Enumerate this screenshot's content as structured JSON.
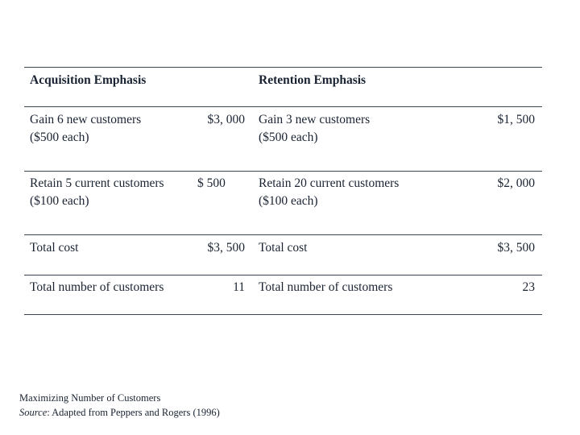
{
  "table": {
    "headers": {
      "left": "Acquisition Emphasis",
      "right": "Retention Emphasis"
    },
    "rows": [
      {
        "left_line1": "Gain 6 new customers",
        "left_line2": "($500 each)",
        "left_value": "$3, 000",
        "right_line1": "Gain 3 new customers",
        "right_line2": "($500 each)",
        "right_value": "$1, 500"
      },
      {
        "left_line1": "Retain 5 current customers",
        "left_line2": "($100 each)",
        "left_value": "$ 500",
        "right_line1": "Retain 20 current customers",
        "right_line2": "($100 each)",
        "right_value": "$2, 000"
      },
      {
        "left_line1": "Total cost",
        "left_value": "$3, 500",
        "right_line1": "Total cost",
        "right_value": "$3, 500"
      },
      {
        "left_line1": "Total number of customers",
        "left_value": "11",
        "right_line1": "Total number of customers",
        "right_value": "23"
      }
    ]
  },
  "caption": {
    "title": "Maximizing Number of Customers",
    "source_label": "Source",
    "source_text": ": Adapted from Peppers and Rogers (1996)"
  }
}
